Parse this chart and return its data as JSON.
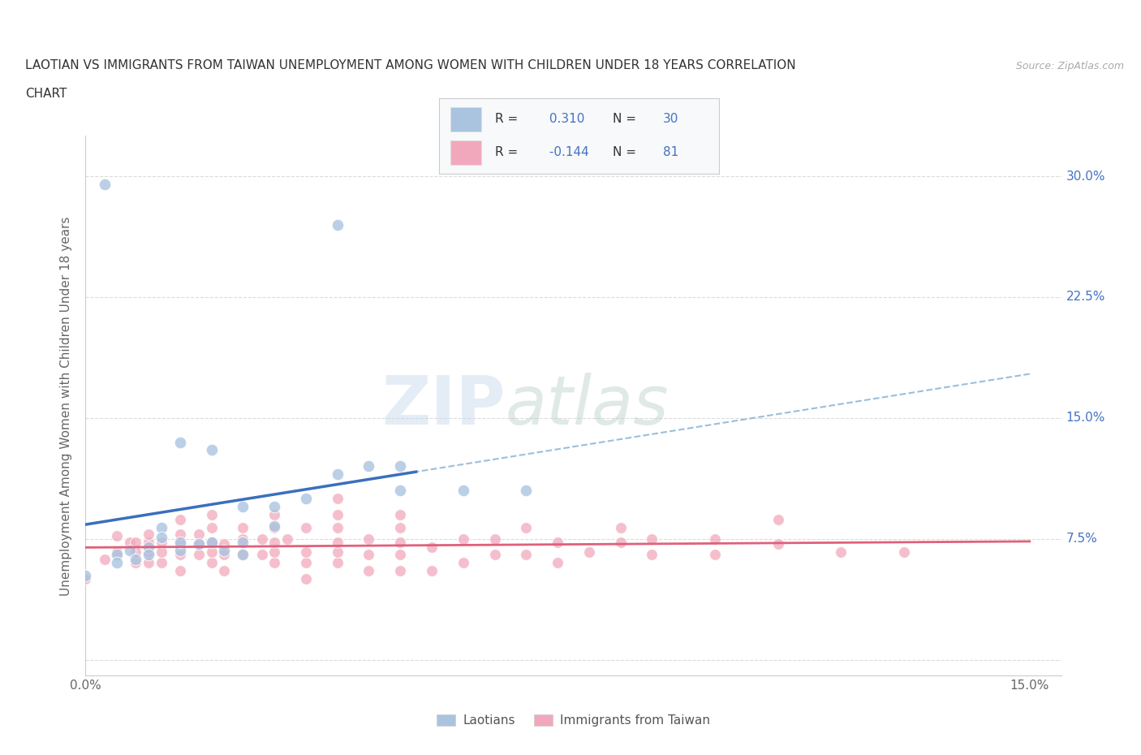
{
  "title_line1": "LAOTIAN VS IMMIGRANTS FROM TAIWAN UNEMPLOYMENT AMONG WOMEN WITH CHILDREN UNDER 18 YEARS CORRELATION",
  "title_line2": "CHART",
  "source_text": "Source: ZipAtlas.com",
  "ylabel": "Unemployment Among Women with Children Under 18 years",
  "xlim": [
    0.0,
    0.155
  ],
  "ylim": [
    -0.01,
    0.325
  ],
  "xtick_positions": [
    0.0,
    0.03,
    0.06,
    0.09,
    0.12,
    0.15
  ],
  "xticklabels": [
    "0.0%",
    "",
    "",
    "",
    "",
    "15.0%"
  ],
  "ytick_positions": [
    0.0,
    0.075,
    0.15,
    0.225,
    0.3
  ],
  "right_yticklabels": [
    "",
    "7.5%",
    "15.0%",
    "22.5%",
    "30.0%"
  ],
  "laotian_color": "#aac4e0",
  "taiwan_color": "#f2a8bc",
  "laotian_line_color": "#3a6fbd",
  "taiwan_line_color": "#e0607a",
  "dashed_line_color": "#90b8d8",
  "background_color": "#ffffff",
  "grid_color": "#d8d8d8",
  "watermark": "ZIPatlas",
  "R_laotian": "0.310",
  "N_laotian": "30",
  "R_taiwan": "-0.144",
  "N_taiwan": "81",
  "legend_bottom": [
    "Laotians",
    "Immigrants from Taiwan"
  ],
  "laotian_scatter": [
    [
      0.003,
      0.295
    ],
    [
      0.005,
      0.065
    ],
    [
      0.007,
      0.068
    ],
    [
      0.008,
      0.062
    ],
    [
      0.01,
      0.07
    ],
    [
      0.01,
      0.065
    ],
    [
      0.012,
      0.082
    ],
    [
      0.012,
      0.076
    ],
    [
      0.015,
      0.068
    ],
    [
      0.015,
      0.073
    ],
    [
      0.015,
      0.135
    ],
    [
      0.018,
      0.072
    ],
    [
      0.02,
      0.073
    ],
    [
      0.02,
      0.13
    ],
    [
      0.022,
      0.068
    ],
    [
      0.025,
      0.073
    ],
    [
      0.025,
      0.095
    ],
    [
      0.025,
      0.065
    ],
    [
      0.03,
      0.083
    ],
    [
      0.03,
      0.095
    ],
    [
      0.035,
      0.1
    ],
    [
      0.04,
      0.27
    ],
    [
      0.04,
      0.115
    ],
    [
      0.045,
      0.12
    ],
    [
      0.05,
      0.105
    ],
    [
      0.05,
      0.12
    ],
    [
      0.06,
      0.105
    ],
    [
      0.07,
      0.105
    ],
    [
      0.005,
      0.06
    ],
    [
      0.0,
      0.052
    ]
  ],
  "taiwan_scatter": [
    [
      0.0,
      0.05
    ],
    [
      0.003,
      0.062
    ],
    [
      0.005,
      0.067
    ],
    [
      0.005,
      0.077
    ],
    [
      0.007,
      0.073
    ],
    [
      0.008,
      0.06
    ],
    [
      0.008,
      0.067
    ],
    [
      0.008,
      0.073
    ],
    [
      0.01,
      0.06
    ],
    [
      0.01,
      0.067
    ],
    [
      0.01,
      0.073
    ],
    [
      0.01,
      0.078
    ],
    [
      0.012,
      0.06
    ],
    [
      0.012,
      0.067
    ],
    [
      0.012,
      0.073
    ],
    [
      0.015,
      0.055
    ],
    [
      0.015,
      0.065
    ],
    [
      0.015,
      0.072
    ],
    [
      0.015,
      0.078
    ],
    [
      0.015,
      0.087
    ],
    [
      0.018,
      0.065
    ],
    [
      0.018,
      0.072
    ],
    [
      0.018,
      0.078
    ],
    [
      0.02,
      0.06
    ],
    [
      0.02,
      0.067
    ],
    [
      0.02,
      0.073
    ],
    [
      0.02,
      0.082
    ],
    [
      0.02,
      0.09
    ],
    [
      0.022,
      0.055
    ],
    [
      0.022,
      0.065
    ],
    [
      0.022,
      0.072
    ],
    [
      0.025,
      0.065
    ],
    [
      0.025,
      0.075
    ],
    [
      0.025,
      0.082
    ],
    [
      0.028,
      0.065
    ],
    [
      0.028,
      0.075
    ],
    [
      0.03,
      0.06
    ],
    [
      0.03,
      0.067
    ],
    [
      0.03,
      0.073
    ],
    [
      0.03,
      0.082
    ],
    [
      0.03,
      0.09
    ],
    [
      0.032,
      0.075
    ],
    [
      0.035,
      0.05
    ],
    [
      0.035,
      0.06
    ],
    [
      0.035,
      0.067
    ],
    [
      0.035,
      0.082
    ],
    [
      0.04,
      0.06
    ],
    [
      0.04,
      0.067
    ],
    [
      0.04,
      0.073
    ],
    [
      0.04,
      0.082
    ],
    [
      0.04,
      0.09
    ],
    [
      0.04,
      0.1
    ],
    [
      0.045,
      0.055
    ],
    [
      0.045,
      0.065
    ],
    [
      0.045,
      0.075
    ],
    [
      0.05,
      0.055
    ],
    [
      0.05,
      0.065
    ],
    [
      0.05,
      0.073
    ],
    [
      0.05,
      0.082
    ],
    [
      0.05,
      0.09
    ],
    [
      0.055,
      0.055
    ],
    [
      0.055,
      0.07
    ],
    [
      0.06,
      0.06
    ],
    [
      0.06,
      0.075
    ],
    [
      0.065,
      0.065
    ],
    [
      0.065,
      0.075
    ],
    [
      0.07,
      0.065
    ],
    [
      0.07,
      0.082
    ],
    [
      0.075,
      0.06
    ],
    [
      0.075,
      0.073
    ],
    [
      0.08,
      0.067
    ],
    [
      0.085,
      0.073
    ],
    [
      0.085,
      0.082
    ],
    [
      0.09,
      0.065
    ],
    [
      0.09,
      0.075
    ],
    [
      0.1,
      0.065
    ],
    [
      0.1,
      0.075
    ],
    [
      0.11,
      0.072
    ],
    [
      0.11,
      0.087
    ],
    [
      0.12,
      0.067
    ],
    [
      0.13,
      0.067
    ]
  ]
}
